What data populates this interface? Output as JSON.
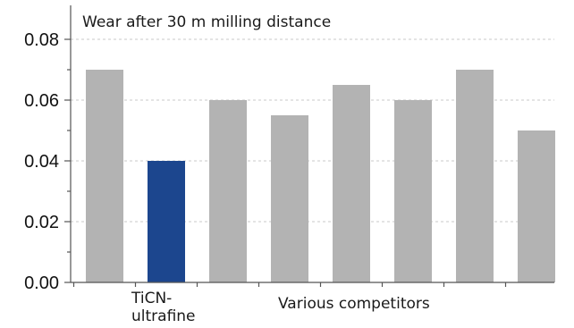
{
  "chart_data": {
    "type": "bar",
    "title": "Wear after 30 m milling distance",
    "xlabel": "",
    "ylabel": "",
    "ylim": [
      0,
      0.085
    ],
    "grid": true,
    "yticks": [
      "0.00",
      "0.02",
      "0.04",
      "0.06",
      "0.08"
    ],
    "yticks_values": [
      0,
      0.02,
      0.04,
      0.06,
      0.08
    ],
    "categories": [
      "",
      "TiCN-ultrafine",
      "",
      "",
      "",
      "",
      "",
      ""
    ],
    "values": [
      0.07,
      0.04,
      0.06,
      0.055,
      0.065,
      0.06,
      0.07,
      0.05
    ],
    "highlight_index": 1,
    "colors": {
      "highlight": "#1c468e",
      "default": "#b3b3b3",
      "grid": "#c8c8c8",
      "axis": "#555555"
    },
    "annotations": {
      "highlight_label_line1": "TiCN-",
      "highlight_label_line2": "ultrafine",
      "group_label": "Various competitors"
    }
  }
}
